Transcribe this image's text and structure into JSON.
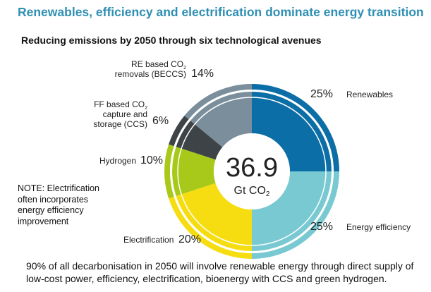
{
  "page": {
    "title": "Renewables, efficiency and electrification dominate energy transition",
    "subtitle": "Reducing emissions by 2050 through six technological avenues",
    "note": "NOTE: Electrification often incorporates energy efficiency improvement",
    "footer": "90% of all decarbonisation in 2050 will involve renewable energy through direct supply of low-cost power, efficiency, electrification, bioenergy with CCS and green hydrogen."
  },
  "chart_data": {
    "type": "pie",
    "style": "donut",
    "center_value": "36.9",
    "center_unit": "Gt CO₂",
    "segments": [
      {
        "name": "Renewables",
        "value": 25,
        "pct_label": "25%",
        "color": "#0c6ea6",
        "ring_color": "#0c6ea6"
      },
      {
        "name": "Energy efficiency",
        "value": 25,
        "pct_label": "25%",
        "color": "#79c9d2",
        "ring_color": "#79c9d2"
      },
      {
        "name": "Electrification",
        "value": 20,
        "pct_label": "20%",
        "color": "#f6dd12",
        "ring_color": "#f6dd12"
      },
      {
        "name": "Hydrogen",
        "value": 10,
        "pct_label": "10%",
        "color": "#a9c91a",
        "ring_color": "#a9c91a"
      },
      {
        "name": "FF based CO₂ capture and storage (CCS)",
        "value": 6,
        "pct_label": "6%",
        "color": "#3e4348",
        "ring_color": "#3e4348"
      },
      {
        "name": "RE based CO₂ removals (BECCS)",
        "value": 14,
        "pct_label": "14%",
        "color": "#7b8e9b",
        "ring_color": "#7b8e9b"
      }
    ],
    "start_angle_deg": 0,
    "direction": "clockwise"
  }
}
